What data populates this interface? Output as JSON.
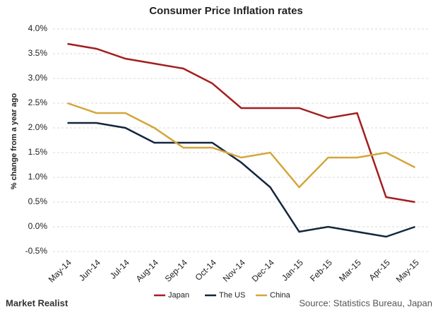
{
  "chart_data": {
    "type": "line",
    "title": "Consumer Price Inflation rates",
    "y_label": "% change from a year ago",
    "categories": [
      "May-14",
      "Jun-14",
      "Jul-14",
      "Aug-14",
      "Sep-14",
      "Oct-14",
      "Nov-14",
      "Dec-14",
      "Jan-15",
      "Feb-15",
      "Mar-15",
      "Apr-15",
      "May-15"
    ],
    "series": [
      {
        "name": "Japan",
        "color": "#a31f1f",
        "values": [
          3.7,
          3.6,
          3.4,
          3.3,
          3.2,
          2.9,
          2.4,
          2.4,
          2.4,
          2.2,
          2.3,
          0.6,
          0.5
        ]
      },
      {
        "name": "The US",
        "color": "#14263d",
        "values": [
          2.1,
          2.1,
          2.0,
          1.7,
          1.7,
          1.7,
          1.3,
          0.8,
          -0.1,
          0.0,
          -0.1,
          -0.2,
          0.0
        ]
      },
      {
        "name": "China",
        "color": "#d4a63a",
        "values": [
          2.5,
          2.3,
          2.3,
          2.0,
          1.6,
          1.6,
          1.4,
          1.5,
          0.8,
          1.4,
          1.4,
          1.5,
          1.2
        ]
      }
    ],
    "ylim": [
      -0.5,
      4.0
    ],
    "yticks": [
      {
        "value": -0.5,
        "label": "-0.5%"
      },
      {
        "value": 0,
        "label": "0.0%"
      },
      {
        "value": 0.5,
        "label": "0.5%"
      },
      {
        "value": 1.0,
        "label": "1.0%"
      },
      {
        "value": 1.5,
        "label": "1.5%"
      },
      {
        "value": 2.0,
        "label": "2.0%"
      },
      {
        "value": 2.5,
        "label": "2.5%"
      },
      {
        "value": 3.0,
        "label": "3.0%"
      },
      {
        "value": 3.5,
        "label": "3.5%"
      },
      {
        "value": 4.0,
        "label": "4.0%"
      }
    ],
    "grid": true,
    "legend": "bottom",
    "brand": "Market Realist",
    "source": "Source: Statistics Bureau, Japan"
  }
}
